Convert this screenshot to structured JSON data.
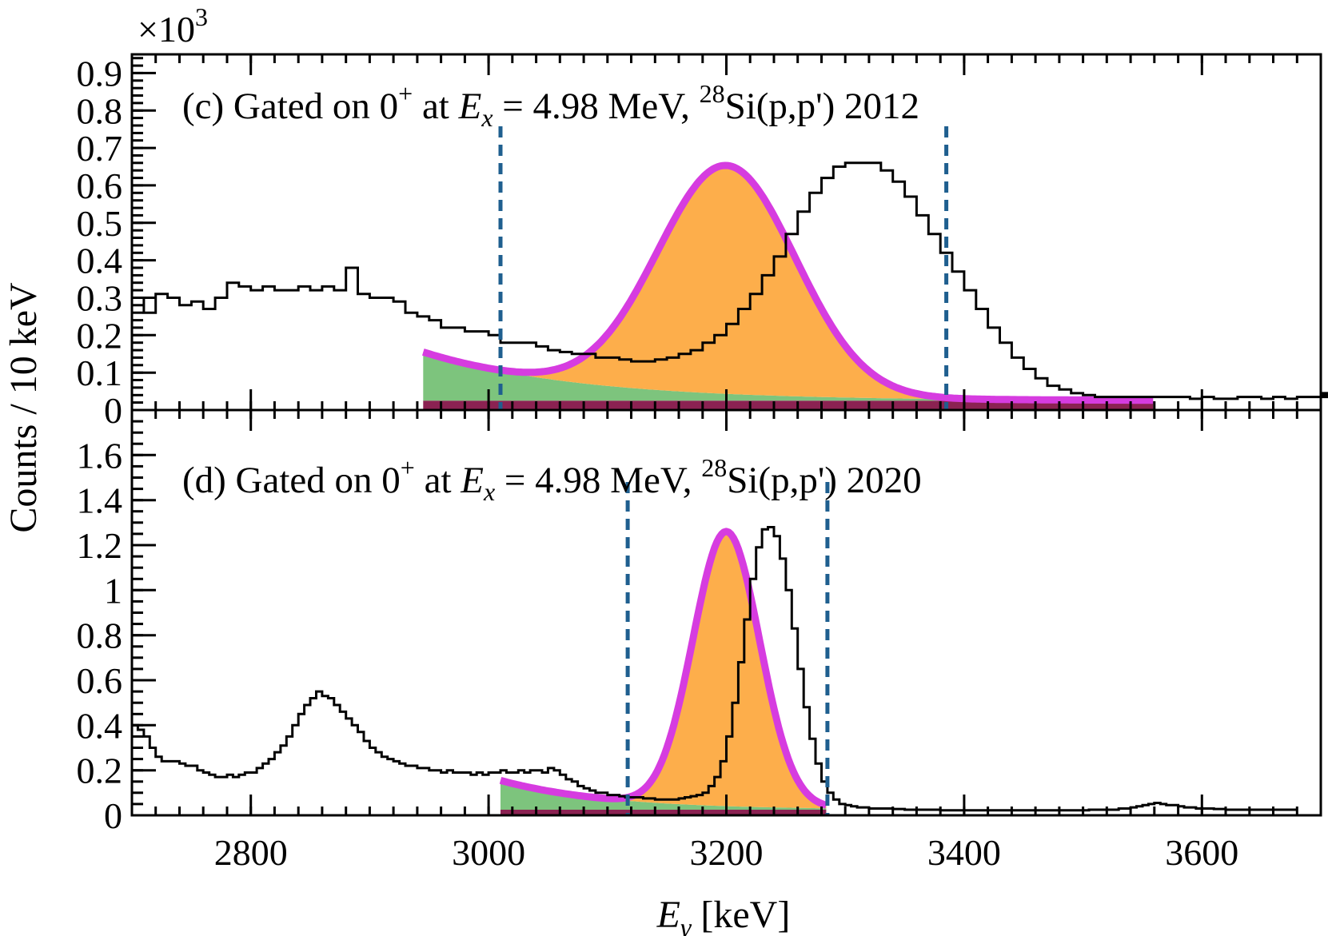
{
  "figure": {
    "multiplier": "×10",
    "multiplier_exp": "3",
    "y_axis_title": "Counts / 10 keV",
    "x_axis_title_main": "E",
    "x_axis_title_sub": "γ",
    "x_axis_title_unit": " [keV]"
  },
  "chart_data": [
    {
      "type": "line",
      "panel": "c",
      "title_prefix": "(c) Gated on 0",
      "title_sup": "+",
      "title_at": " at ",
      "title_ex": "E",
      "title_ex_sub": "x",
      "title_mid": " = 4.98 MeV, ",
      "title_mass": "28",
      "title_tail": "Si(p,p') 2012",
      "xlim": [
        2700,
        3700
      ],
      "ylim": [
        0,
        0.95
      ],
      "y_ticks": [
        0,
        0.1,
        0.2,
        0.3,
        0.4,
        0.5,
        0.6,
        0.7,
        0.8,
        0.9
      ],
      "y_tick_labels": [
        "0",
        "0.1",
        "0.2",
        "0.3",
        "0.4",
        "0.5",
        "0.6",
        "0.7",
        "0.8",
        "0.9"
      ],
      "y_minor_step": 0.02,
      "x_ticks": [
        2800,
        3000,
        3200,
        3400,
        3600
      ],
      "x_minor_step": 20,
      "gate_lines": [
        3010,
        3385
      ],
      "fit_range": [
        2945,
        3560
      ],
      "fit_model": {
        "constant": 0.025,
        "exp_amp": 0.13,
        "exp_start": 2945,
        "exp_decay": 130,
        "gauss_amp": 0.61,
        "gauss_mu": 3200,
        "gauss_sigma": 58
      },
      "colors": {
        "constant": "#8b2252",
        "exponential": "#7dc47d",
        "gaussian": "#fdae4b",
        "total_fit": "#d63ce0",
        "histogram": "#000000",
        "gate": "#1f5f8f"
      },
      "histogram": {
        "x_start": 2700,
        "bin_width": 10,
        "counts": [
          0.3,
          0.26,
          0.31,
          0.3,
          0.28,
          0.29,
          0.27,
          0.3,
          0.34,
          0.33,
          0.32,
          0.33,
          0.32,
          0.32,
          0.33,
          0.32,
          0.33,
          0.32,
          0.38,
          0.31,
          0.3,
          0.3,
          0.29,
          0.26,
          0.25,
          0.24,
          0.22,
          0.22,
          0.21,
          0.21,
          0.2,
          0.18,
          0.18,
          0.18,
          0.17,
          0.16,
          0.155,
          0.15,
          0.15,
          0.14,
          0.14,
          0.135,
          0.13,
          0.13,
          0.135,
          0.14,
          0.15,
          0.16,
          0.18,
          0.2,
          0.23,
          0.27,
          0.31,
          0.36,
          0.41,
          0.47,
          0.53,
          0.58,
          0.62,
          0.65,
          0.66,
          0.66,
          0.66,
          0.64,
          0.61,
          0.57,
          0.52,
          0.47,
          0.42,
          0.37,
          0.32,
          0.27,
          0.22,
          0.18,
          0.14,
          0.11,
          0.085,
          0.065,
          0.055,
          0.045,
          0.04,
          0.035,
          0.035,
          0.035,
          0.035,
          0.035,
          0.035,
          0.035,
          0.035,
          0.03,
          0.035,
          0.03,
          0.03,
          0.035,
          0.035,
          0.03,
          0.035,
          0.03,
          0.035,
          0.035,
          0.035,
          0.04,
          0.035,
          0.045,
          0.04,
          0.045,
          0.04,
          0.045,
          0.04,
          0.045
        ]
      }
    },
    {
      "type": "line",
      "panel": "d",
      "title_prefix": "(d) Gated on 0",
      "title_sup": "+",
      "title_at": " at ",
      "title_ex": "E",
      "title_ex_sub": "x",
      "title_mid": " = 4.98 MeV, ",
      "title_mass": "28",
      "title_tail": "Si(p,p') 2020",
      "xlim": [
        2700,
        3700
      ],
      "ylim": [
        0,
        1.8
      ],
      "y_ticks": [
        0,
        0.2,
        0.4,
        0.6,
        0.8,
        1.0,
        1.2,
        1.4,
        1.6
      ],
      "y_tick_labels": [
        "0",
        "0.2",
        "0.4",
        "0.6",
        "0.8",
        "1",
        "1.2",
        "1.4",
        "1.6"
      ],
      "y_minor_step": 0.05,
      "x_ticks": [
        2800,
        3000,
        3200,
        3400,
        3600
      ],
      "x_tick_labels": [
        "2800",
        "3000",
        "3200",
        "3400",
        "3600"
      ],
      "x_minor_step": 20,
      "gate_lines": [
        3117,
        3285
      ],
      "fit_range": [
        3010,
        3285
      ],
      "fit_model": {
        "constant": 0.025,
        "exp_amp": 0.13,
        "exp_start": 3010,
        "exp_decay": 90,
        "gauss_amp": 1.22,
        "gauss_mu": 3200,
        "gauss_sigma": 28
      },
      "colors": {
        "constant": "#8b2252",
        "exponential": "#7dc47d",
        "gaussian": "#fdae4b",
        "total_fit": "#d63ce0",
        "histogram": "#000000",
        "gate": "#1f5f8f"
      },
      "histogram": {
        "x_start": 2700,
        "bin_width": 5,
        "counts": [
          0.4,
          0.38,
          0.35,
          0.3,
          0.26,
          0.24,
          0.24,
          0.24,
          0.23,
          0.22,
          0.22,
          0.2,
          0.19,
          0.18,
          0.17,
          0.17,
          0.18,
          0.17,
          0.18,
          0.19,
          0.19,
          0.21,
          0.23,
          0.25,
          0.28,
          0.31,
          0.35,
          0.4,
          0.45,
          0.49,
          0.52,
          0.55,
          0.53,
          0.52,
          0.49,
          0.46,
          0.43,
          0.4,
          0.37,
          0.33,
          0.3,
          0.28,
          0.26,
          0.25,
          0.24,
          0.23,
          0.22,
          0.22,
          0.21,
          0.21,
          0.2,
          0.2,
          0.19,
          0.2,
          0.19,
          0.19,
          0.19,
          0.18,
          0.19,
          0.18,
          0.19,
          0.19,
          0.2,
          0.19,
          0.19,
          0.2,
          0.19,
          0.2,
          0.2,
          0.19,
          0.21,
          0.2,
          0.18,
          0.16,
          0.15,
          0.13,
          0.12,
          0.11,
          0.1,
          0.1,
          0.09,
          0.09,
          0.085,
          0.08,
          0.08,
          0.08,
          0.075,
          0.075,
          0.07,
          0.07,
          0.07,
          0.07,
          0.075,
          0.08,
          0.085,
          0.09,
          0.1,
          0.13,
          0.17,
          0.24,
          0.35,
          0.5,
          0.68,
          0.87,
          1.05,
          1.19,
          1.27,
          1.28,
          1.24,
          1.14,
          1.0,
          0.83,
          0.65,
          0.48,
          0.34,
          0.23,
          0.15,
          0.1,
          0.07,
          0.05,
          0.045,
          0.04,
          0.035,
          0.035,
          0.03,
          0.03,
          0.03,
          0.03,
          0.028,
          0.028,
          0.025,
          0.025,
          0.025,
          0.025,
          0.025,
          0.025,
          0.022,
          0.022,
          0.022,
          0.022,
          0.022,
          0.022,
          0.022,
          0.022,
          0.022,
          0.022,
          0.022,
          0.022,
          0.022,
          0.022,
          0.022,
          0.022,
          0.022,
          0.022,
          0.022,
          0.022,
          0.022,
          0.022,
          0.022,
          0.022,
          0.022,
          0.025,
          0.025,
          0.025,
          0.025,
          0.025,
          0.03,
          0.03,
          0.035,
          0.04,
          0.045,
          0.05,
          0.055,
          0.05,
          0.045,
          0.045,
          0.04,
          0.035,
          0.035,
          0.03,
          0.03,
          0.03,
          0.028,
          0.028,
          0.025,
          0.025,
          0.025,
          0.025,
          0.025,
          0.025,
          0.025,
          0.025,
          0.025,
          0.025,
          0.025,
          0.025
        ]
      }
    }
  ]
}
